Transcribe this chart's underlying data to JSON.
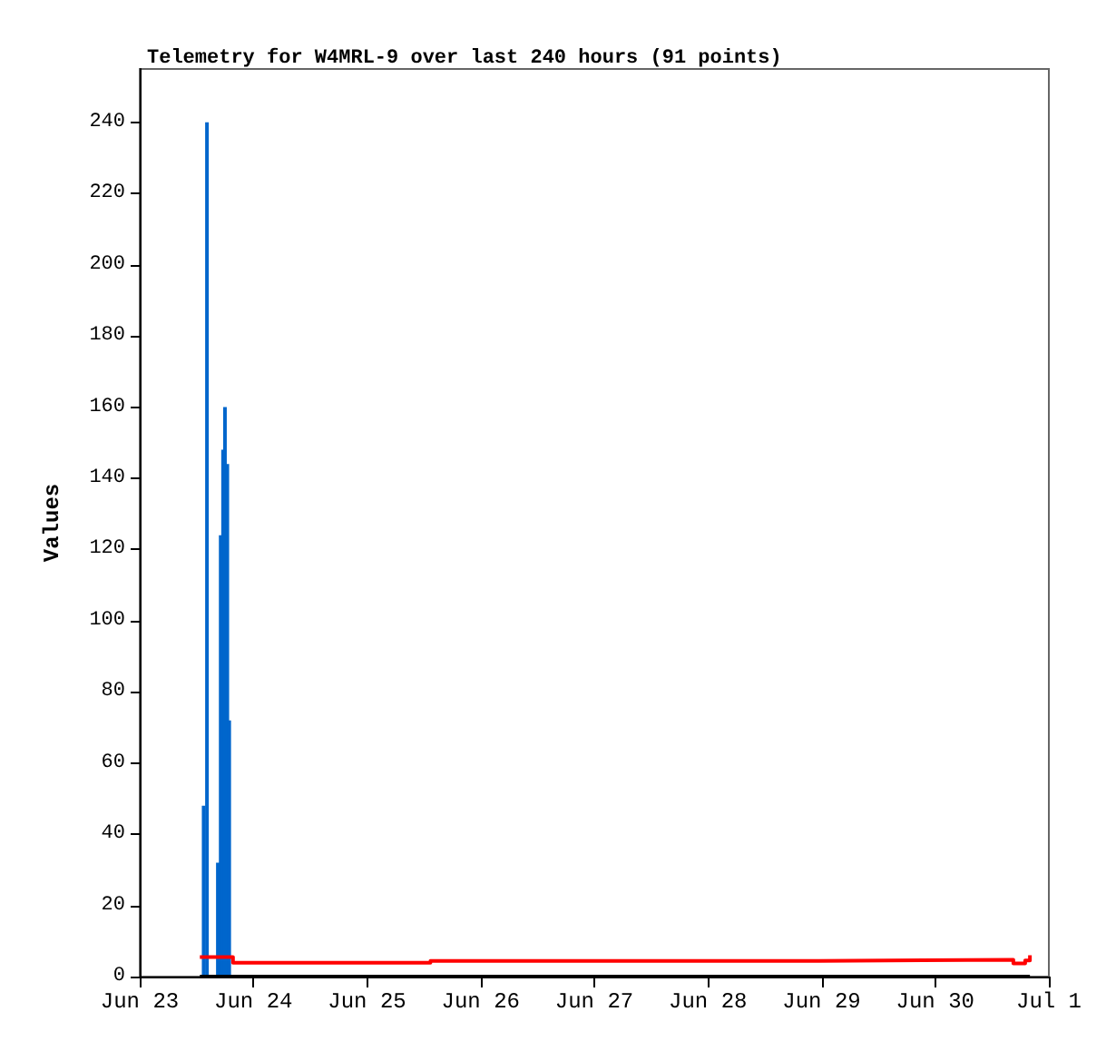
{
  "chart_data": {
    "type": "bar",
    "title": "Telemetry for W4MRL-9 over last 240 hours (91 points)",
    "ylabel": "Values",
    "xlim": [
      "--06-23",
      "--07-01"
    ],
    "xticks": [
      {
        "value": "--06-23",
        "label": "Jun 23"
      },
      {
        "value": "--06-24",
        "label": "Jun 24"
      },
      {
        "value": "--06-25",
        "label": "Jun 25"
      },
      {
        "value": "--06-26",
        "label": "Jun 26"
      },
      {
        "value": "--06-27",
        "label": "Jun 27"
      },
      {
        "value": "--06-28",
        "label": "Jun 28"
      },
      {
        "value": "--06-29",
        "label": "Jun 29"
      },
      {
        "value": "--06-30",
        "label": "Jun 30"
      },
      {
        "value": "--07-01",
        "label": "Jul 1"
      }
    ],
    "ylim": [
      0,
      255
    ],
    "yticks": [
      0,
      20,
      40,
      60,
      80,
      100,
      120,
      140,
      160,
      180,
      200,
      220,
      240
    ],
    "grid": false,
    "series": [
      {
        "color": "#0066cc",
        "x": [
          "--06-23T13:30",
          "--06-23T14:12",
          "--06-23T16:30",
          "--06-23T17:06",
          "--06-23T17:36",
          "--06-23T18:00",
          "--06-23T18:30",
          "--06-23T18:54"
        ],
        "values": [
          48,
          240,
          32,
          124,
          148,
          160,
          144,
          72
        ]
      },
      {
        "type": "step",
        "color": "#ff0000",
        "x": [
          "--06-23T12:42",
          "--06-23T19:42",
          "--06-25T13:24",
          "--06-28T23:30",
          "--06-30T16:30",
          "--06-30T19:00",
          "--06-30T20:00"
        ],
        "values": [
          5.5,
          3.9,
          4.4,
          4.7,
          3.7,
          4.5,
          6
        ]
      },
      {
        "type": "line",
        "color": "#000000",
        "x": [
          "--06-23T12:42",
          "--06-30T20:00"
        ],
        "values": [
          0,
          0
        ]
      }
    ]
  }
}
